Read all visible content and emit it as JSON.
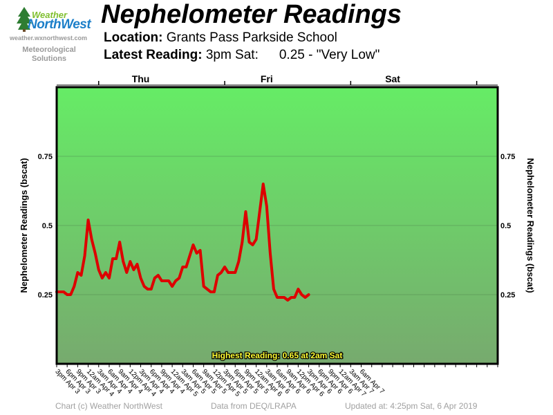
{
  "branding": {
    "logo_word_top": "Weather",
    "logo_word_bottom": "NorthWest",
    "url": "weather.wxnorthwest.com",
    "tagline_1": "Meteorological",
    "tagline_2": "Solutions",
    "brand_colors": {
      "green": "#7fbf2f",
      "blue": "#1c7fc9",
      "gray": "#9a9a9a"
    }
  },
  "header": {
    "title": "Nephelometer Readings",
    "location_label": "Location:",
    "location_value": "Grants Pass Parkside School",
    "latest_label": "Latest Reading:",
    "latest_time": "3pm Sat:",
    "latest_value": "0.25 - \"Very Low\""
  },
  "chart_data": {
    "type": "line",
    "ylabel": "Nephelometer Readings (bscat)",
    "ylim": [
      0,
      1
    ],
    "yticks": [
      0.25,
      0.5,
      0.75
    ],
    "ytick_labels": [
      "0.25",
      "0.5",
      "0.75"
    ],
    "grid": true,
    "day_labels": [
      {
        "label": "Thu",
        "slot": 8
      },
      {
        "label": "Fri",
        "slot": 20
      },
      {
        "label": "Sat",
        "slot": 32
      }
    ],
    "day_boundaries": [
      4,
      16,
      28,
      40
    ],
    "x_labels": [
      "3pm Apr 3",
      "6pm Apr 3",
      "9pm Apr 3",
      "12am Apr 4",
      "3am Apr 4",
      "6am Apr 4",
      "9am Apr 4",
      "12pm Apr 4",
      "3pm Apr 4",
      "6pm Apr 4",
      "9pm Apr 4",
      "12am Apr 5",
      "3am Apr 5",
      "6am Apr 5",
      "9am Apr 5",
      "12pm Apr 5",
      "3pm Apr 5",
      "6pm Apr 5",
      "9pm Apr 5",
      "12am Apr 6",
      "3am Apr 6",
      "6am Apr 6",
      "9am Apr 6",
      "12pm Apr 6",
      "3pm Apr 6",
      "6pm Apr 6",
      "9pm Apr 6",
      "12am Apr 7",
      "3am Apr 7",
      "6am Apr 7"
    ],
    "x_slots": 42,
    "series": [
      {
        "name": "",
        "values": [
          0.26,
          0.26,
          0.26,
          0.25,
          0.25,
          0.28,
          0.33,
          0.32,
          0.39,
          0.52,
          0.45,
          0.4,
          0.34,
          0.31,
          0.33,
          0.31,
          0.38,
          0.38,
          0.44,
          0.37,
          0.33,
          0.37,
          0.34,
          0.36,
          0.31,
          0.28,
          0.27,
          0.27,
          0.31,
          0.32,
          0.3,
          0.3,
          0.3,
          0.28,
          0.3,
          0.31,
          0.35,
          0.35,
          0.39,
          0.43,
          0.4,
          0.41,
          0.28,
          0.27,
          0.26,
          0.26,
          0.32,
          0.33,
          0.35,
          0.33,
          0.33,
          0.33,
          0.37,
          0.44,
          0.55,
          0.44,
          0.43,
          0.45,
          0.55,
          0.65,
          0.57,
          0.4,
          0.27,
          0.24,
          0.24,
          0.24,
          0.23,
          0.24,
          0.24,
          0.27,
          0.25,
          0.24,
          0.25
        ]
      }
    ],
    "colors": {
      "line": "#dd0000",
      "plot_top": "#66ec66",
      "plot_bottom": "#77aa6e",
      "frame": "#000000"
    },
    "annotation": "Highest Reading: 0.65 at 2am Sat"
  },
  "footer": {
    "credit": "Chart (c) Weather NorthWest",
    "source": "Data from DEQ/LRAPA",
    "updated": "Updated at: 4:25pm Sat, 6 Apr 2019"
  }
}
